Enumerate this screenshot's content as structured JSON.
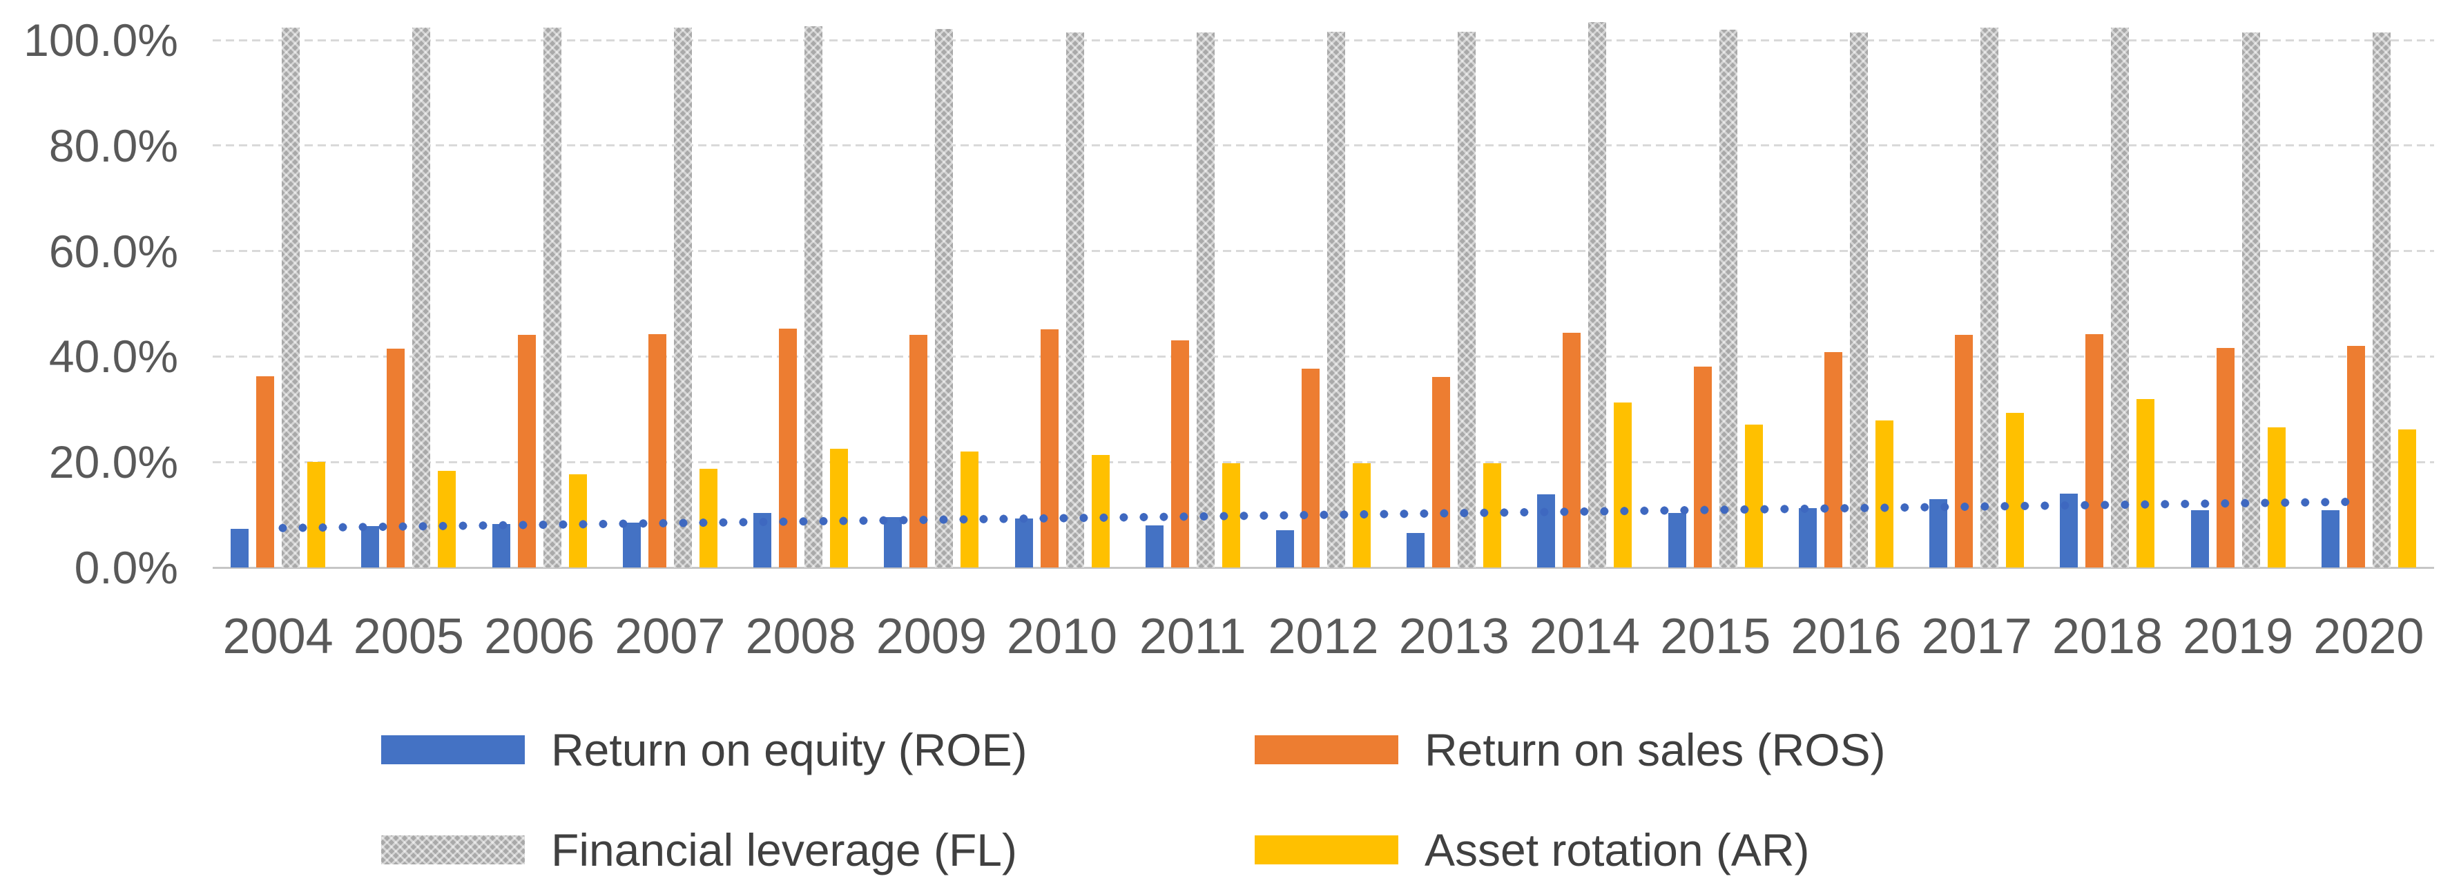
{
  "chart_data": {
    "type": "bar",
    "title": "",
    "xlabel": "",
    "ylabel": "",
    "categories": [
      "2004",
      "2005",
      "2006",
      "2007",
      "2008",
      "2009",
      "2010",
      "2011",
      "2012",
      "2013",
      "2014",
      "2015",
      "2016",
      "2017",
      "2018",
      "2019",
      "2020"
    ],
    "series": [
      {
        "name": "Return on equity (ROE)",
        "color": "#4472C4",
        "pattern": false,
        "values": [
          7.3,
          7.8,
          8.2,
          8.5,
          10.4,
          9.6,
          9.3,
          8.0,
          7.1,
          6.6,
          13.9,
          10.4,
          11.3,
          12.9,
          14.0,
          10.9,
          10.9
        ]
      },
      {
        "name": "Return on sales (ROS)",
        "color": "#ED7D31",
        "pattern": false,
        "values": [
          36.2,
          41.5,
          44.1,
          44.2,
          45.3,
          44.1,
          45.2,
          43.0,
          37.7,
          36.1,
          44.5,
          38.1,
          40.8,
          44.1,
          44.2,
          41.6,
          42.0
        ]
      },
      {
        "name": "Financial leverage (FL)",
        "color": "#A9A9A9",
        "pattern": true,
        "values": [
          102.4,
          102.4,
          102.4,
          102.4,
          102.6,
          102.1,
          101.5,
          101.5,
          101.6,
          101.6,
          103.4,
          101.9,
          101.4,
          102.4,
          102.4,
          101.4,
          101.4
        ]
      },
      {
        "name": "Asset rotation (AR)",
        "color": "#FFC000",
        "pattern": false,
        "values": [
          20.0,
          18.3,
          17.7,
          18.7,
          22.5,
          22.0,
          21.4,
          19.8,
          19.8,
          19.8,
          31.3,
          27.1,
          27.9,
          29.3,
          32.0,
          26.6,
          26.2
        ]
      }
    ],
    "trendline": {
      "for_series": "Return on equity (ROE)",
      "style": "dotted",
      "color": "#3e68c0",
      "start_value": 7.4,
      "end_value": 12.4
    },
    "y_axis": {
      "min": 0,
      "max": 100,
      "tick_step": 20,
      "tick_labels": [
        "100.0%",
        "80.0%",
        "60.0%",
        "40.0%",
        "20.0%",
        "0.0%"
      ],
      "grid": true
    },
    "legend": {
      "position": "bottom",
      "items": [
        {
          "label": "Return on equity (ROE)",
          "color": "#4472C4",
          "pattern": false
        },
        {
          "label": "Return on sales (ROS)",
          "color": "#ED7D31",
          "pattern": false
        },
        {
          "label": "Financial leverage (FL)",
          "color": "#A9A9A9",
          "pattern": true
        },
        {
          "label": "Asset rotation (AR)",
          "color": "#FFC000",
          "pattern": false
        }
      ]
    }
  }
}
